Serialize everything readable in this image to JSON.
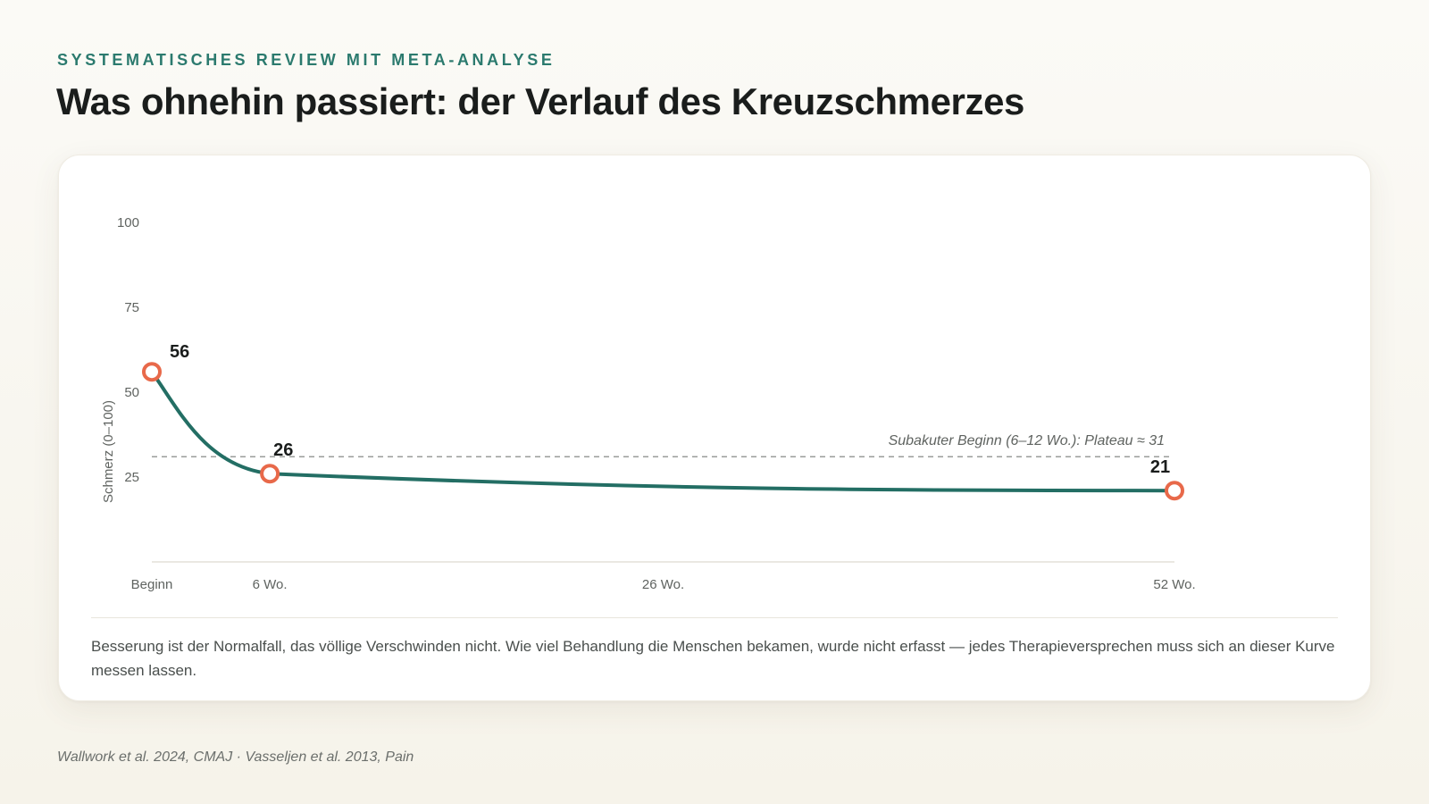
{
  "header": {
    "eyebrow": "SYSTEMATISCHES REVIEW MIT META-ANALYSE",
    "title": "Was ohnehin passiert: der Verlauf des Kreuzschmerzes"
  },
  "chart_data": {
    "type": "line",
    "title": "",
    "xlabel": "",
    "ylabel": "Schmerz (0–100)",
    "ylim": [
      0,
      100
    ],
    "xlim": [
      0,
      52
    ],
    "y_ticks": [
      25,
      50,
      75,
      100
    ],
    "x_ticks": [
      {
        "value": 0,
        "label": "Beginn"
      },
      {
        "value": 6,
        "label": "6 Wo."
      },
      {
        "value": 26,
        "label": "26 Wo."
      },
      {
        "value": 52,
        "label": "52 Wo."
      }
    ],
    "grid": false,
    "series": [
      {
        "color": "#236e64",
        "points": [
          {
            "x": 0,
            "y": 56,
            "label": "56",
            "marker": true
          },
          {
            "x": 6,
            "y": 26,
            "label": "26",
            "marker": true
          },
          {
            "x": 52,
            "y": 21,
            "label": "21",
            "marker": true
          }
        ]
      }
    ],
    "reference_line": {
      "y": 31,
      "label": "Subakuter Beginn (6–12 Wo.): Plateau ≈ 31",
      "style": "dashed"
    },
    "colors": {
      "line": "#236e64",
      "marker": "#e8694a",
      "reference": "#9a9d9a"
    }
  },
  "caption": "Besserung ist der Normalfall, das völlige Verschwinden nicht. Wie viel Behandlung die Menschen bekamen, wurde nicht erfasst — jedes Therapieversprechen muss sich an dieser Kurve messen lassen.",
  "source": "Wallwork et al. 2024, CMAJ · Vasseljen et al. 2013, Pain"
}
